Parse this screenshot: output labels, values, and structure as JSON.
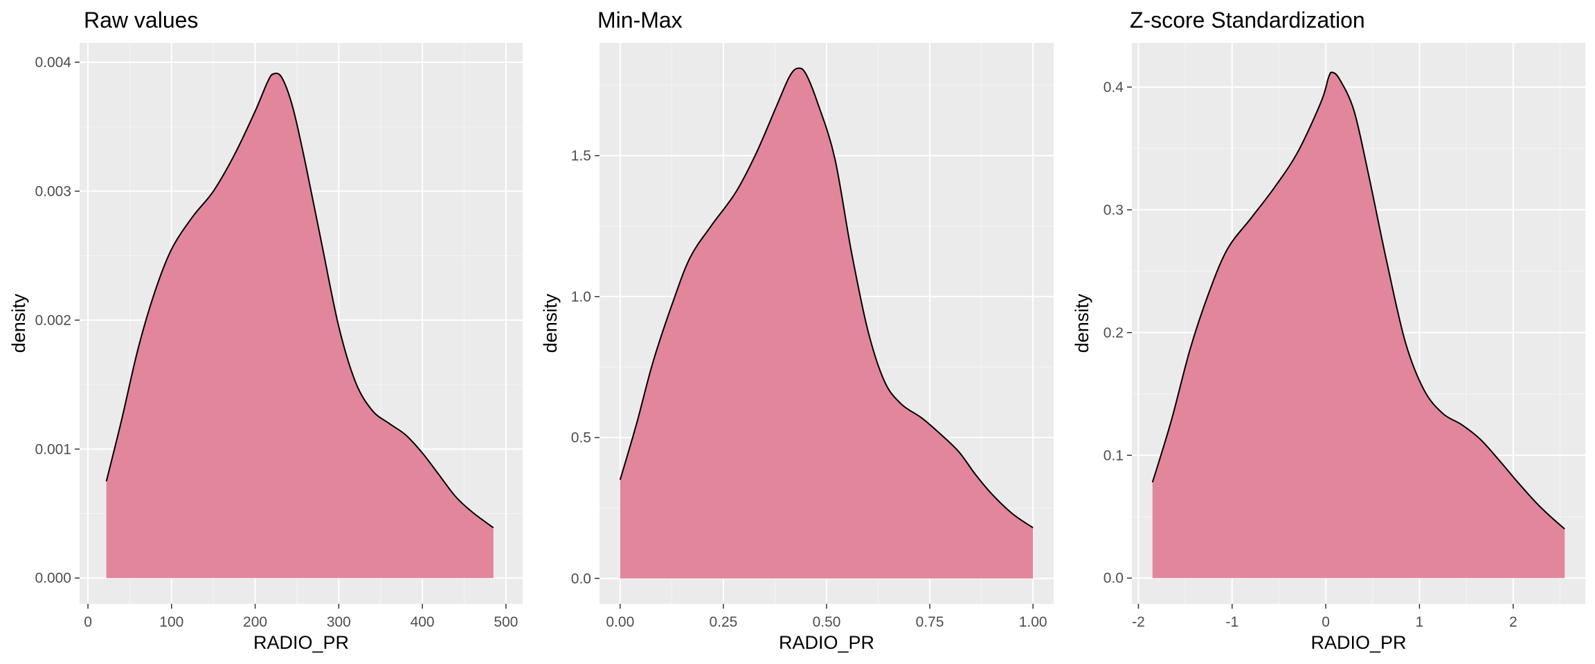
{
  "colors": {
    "panel_background": "#ebebeb",
    "grid_major": "#ffffff",
    "grid_minor": "#f5f5f5",
    "fill": "#e2869c",
    "outline": "#000000",
    "tick_text": "#4d4d4d"
  },
  "chart_data": [
    {
      "type": "area",
      "title": "Raw values",
      "xlabel": "RADIO_PR",
      "ylabel": "density",
      "grid": true,
      "xlim": [
        0,
        500
      ],
      "ylim": [
        0,
        0.004
      ],
      "xticks": [
        0,
        100,
        200,
        300,
        400,
        500
      ],
      "xtick_labels": [
        "0",
        "100",
        "200",
        "300",
        "400",
        "500"
      ],
      "yticks": [
        0.0,
        0.001,
        0.002,
        0.003,
        0.004
      ],
      "ytick_labels": [
        "0.000",
        "0.001",
        "0.002",
        "0.003",
        "0.004"
      ],
      "x": [
        22,
        40,
        60,
        80,
        100,
        125,
        150,
        175,
        200,
        215,
        222,
        232,
        245,
        260,
        280,
        300,
        320,
        340,
        360,
        380,
        400,
        420,
        440,
        460,
        485
      ],
      "y": [
        0.00075,
        0.00122,
        0.00178,
        0.00222,
        0.00255,
        0.0028,
        0.003,
        0.00328,
        0.00362,
        0.00385,
        0.00391,
        0.00388,
        0.00365,
        0.00322,
        0.00258,
        0.00195,
        0.00152,
        0.0013,
        0.0012,
        0.00111,
        0.00097,
        0.0008,
        0.00063,
        0.00051,
        0.00039
      ]
    },
    {
      "type": "area",
      "title": "Min-Max",
      "xlabel": "RADIO_PR",
      "ylabel": "density",
      "grid": true,
      "xlim": [
        0,
        1
      ],
      "ylim": [
        0,
        1.75
      ],
      "xticks": [
        0,
        0.25,
        0.5,
        0.75,
        1.0
      ],
      "xtick_labels": [
        "0.00",
        "0.25",
        "0.50",
        "0.75",
        "1.00"
      ],
      "yticks": [
        0.0,
        0.5,
        1.0,
        1.5
      ],
      "ytick_labels": [
        "0.0",
        "0.5",
        "1.0",
        "1.5"
      ],
      "x": [
        0.0,
        0.04,
        0.08,
        0.13,
        0.17,
        0.22,
        0.28,
        0.33,
        0.38,
        0.41,
        0.43,
        0.45,
        0.48,
        0.52,
        0.56,
        0.6,
        0.64,
        0.68,
        0.73,
        0.77,
        0.82,
        0.86,
        0.9,
        0.95,
        1.0
      ],
      "y": [
        0.35,
        0.55,
        0.77,
        0.99,
        1.14,
        1.25,
        1.37,
        1.51,
        1.68,
        1.78,
        1.81,
        1.79,
        1.68,
        1.49,
        1.16,
        0.88,
        0.7,
        0.62,
        0.57,
        0.52,
        0.45,
        0.37,
        0.3,
        0.23,
        0.18
      ]
    },
    {
      "type": "area",
      "title": "Z-score Standardization",
      "xlabel": "RADIO_PR",
      "ylabel": "density",
      "grid": true,
      "xlim": [
        -2,
        2.5
      ],
      "ylim": [
        0,
        0.4
      ],
      "xticks": [
        -2,
        -1,
        0,
        1,
        2
      ],
      "xtick_labels": [
        "-2",
        "-1",
        "0",
        "1",
        "2"
      ],
      "yticks": [
        0.0,
        0.1,
        0.2,
        0.3,
        0.4
      ],
      "ytick_labels": [
        "0.0",
        "0.1",
        "0.2",
        "0.3",
        "0.4"
      ],
      "x": [
        -1.85,
        -1.65,
        -1.45,
        -1.25,
        -1.05,
        -0.8,
        -0.55,
        -0.3,
        -0.05,
        0.03,
        0.07,
        0.15,
        0.3,
        0.45,
        0.65,
        0.85,
        1.05,
        1.25,
        1.45,
        1.65,
        1.85,
        2.05,
        2.25,
        2.4,
        2.55
      ],
      "y": [
        0.078,
        0.128,
        0.186,
        0.232,
        0.268,
        0.293,
        0.318,
        0.347,
        0.388,
        0.408,
        0.412,
        0.406,
        0.381,
        0.331,
        0.258,
        0.192,
        0.153,
        0.134,
        0.125,
        0.113,
        0.096,
        0.078,
        0.061,
        0.05,
        0.04
      ]
    }
  ]
}
